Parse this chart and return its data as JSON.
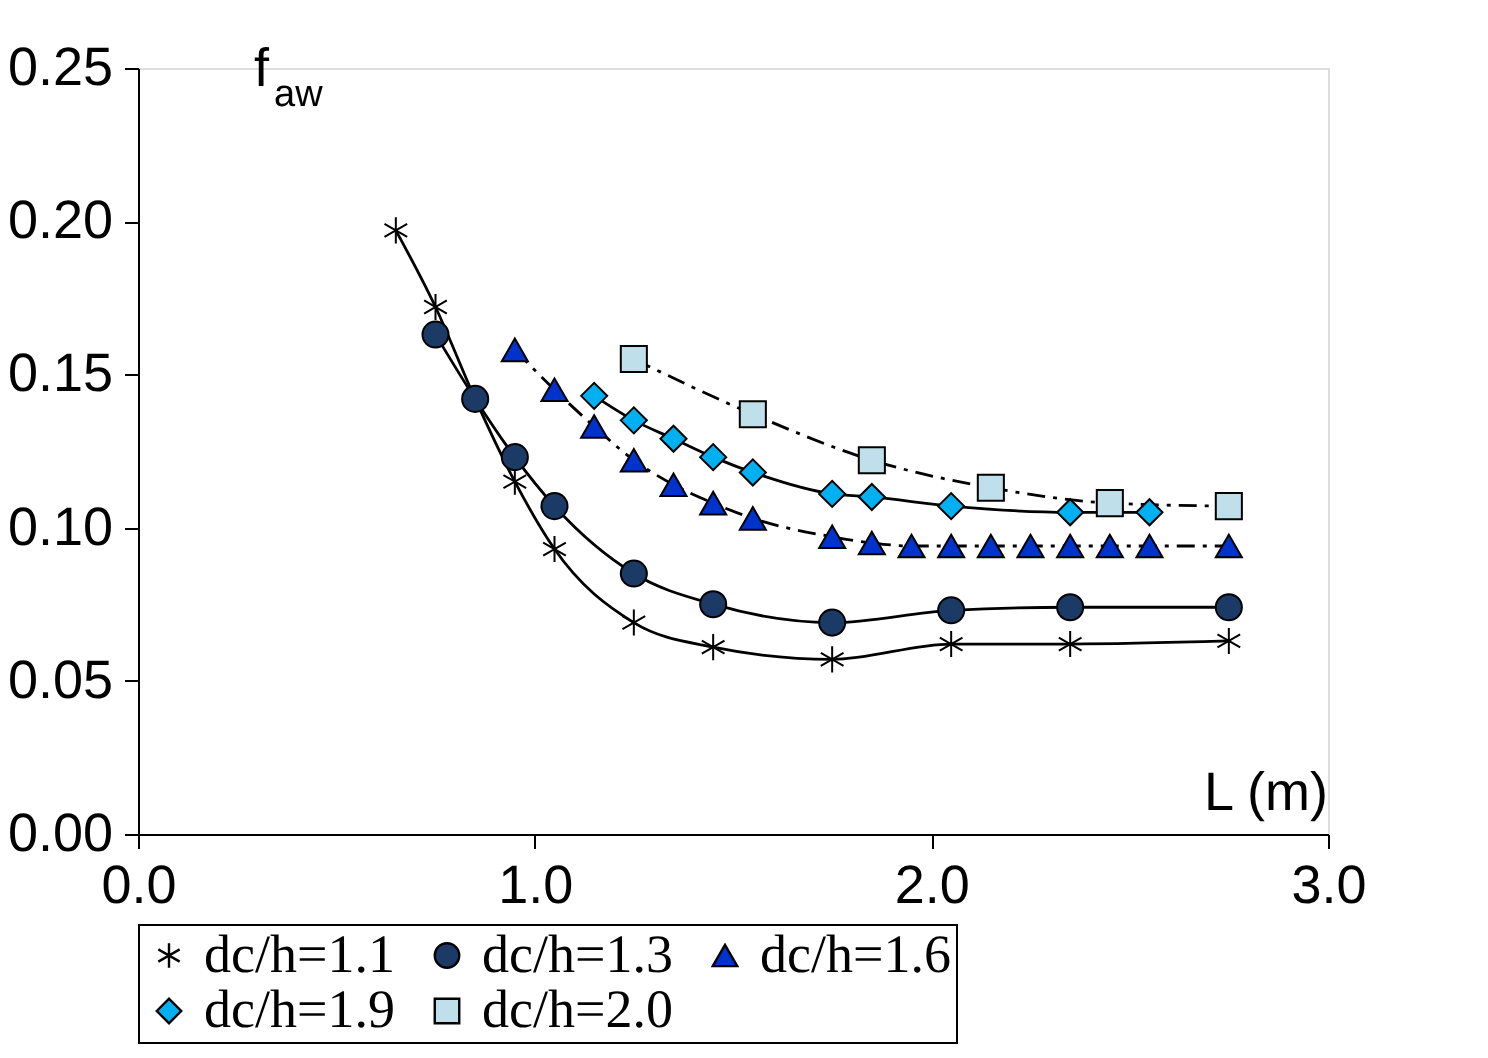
{
  "chart_data": {
    "type": "line",
    "xlabel": "L (m)",
    "ylabel": "f$_{aw}$",
    "xlim": [
      0,
      3
    ],
    "xticks": [
      {
        "value": 0,
        "label": "0.0"
      },
      {
        "value": 1,
        "label": "1.0"
      },
      {
        "value": 2,
        "label": "2.0"
      },
      {
        "value": 3,
        "label": "3.0"
      }
    ],
    "ylim": [
      0,
      0.25
    ],
    "yticks": [
      {
        "value": 0,
        "label": "0.00"
      },
      {
        "value": 0.05,
        "label": "0.05"
      },
      {
        "value": 0.1,
        "label": "0.10"
      },
      {
        "value": 0.15,
        "label": "0.15"
      },
      {
        "value": 0.2,
        "label": "0.20"
      },
      {
        "value": 0.25,
        "label": "0.25"
      }
    ],
    "grid": false,
    "legend": "bottom",
    "series": [
      {
        "name": "dc/h=1.1",
        "color": "#000000",
        "marker": "cross",
        "line_style": "solid",
        "x": [
          0.65,
          0.75,
          0.85,
          0.95,
          1.05,
          1.25,
          1.45,
          1.75,
          2.05,
          2.35,
          2.75
        ],
        "values": [
          0.197,
          0.172,
          0.142,
          0.115,
          0.093,
          0.069,
          0.061,
          0.057,
          0.062,
          0.062,
          0.063
        ]
      },
      {
        "name": "dc/h=1.3",
        "color": "#1b3a66",
        "marker": "circle",
        "line_style": "solid",
        "x": [
          0.75,
          0.85,
          0.95,
          1.05,
          1.25,
          1.45,
          1.75,
          2.05,
          2.35,
          2.75
        ],
        "values": [
          0.163,
          0.142,
          0.123,
          0.107,
          0.085,
          0.075,
          0.069,
          0.073,
          0.074,
          0.074
        ]
      },
      {
        "name": "dc/h=1.6",
        "color": "#0033cc",
        "marker": "triangle",
        "line_style": "dashed",
        "x": [
          0.95,
          1.05,
          1.15,
          1.25,
          1.35,
          1.45,
          1.55,
          1.75,
          1.85,
          1.95,
          2.05,
          2.15,
          2.25,
          2.35,
          2.45,
          2.55,
          2.75
        ],
        "values": [
          0.158,
          0.145,
          0.133,
          0.122,
          0.114,
          0.108,
          0.103,
          0.097,
          0.095,
          0.094,
          0.094,
          0.094,
          0.094,
          0.094,
          0.094,
          0.094,
          0.094
        ]
      },
      {
        "name": "dc/h=1.9",
        "color": "#00b0f0",
        "marker": "diamond",
        "line_style": "solid",
        "x": [
          1.15,
          1.25,
          1.35,
          1.45,
          1.55,
          1.75,
          1.85,
          2.05,
          2.35,
          2.55
        ],
        "values": [
          0.143,
          0.135,
          0.129,
          0.123,
          0.118,
          0.111,
          0.11,
          0.107,
          0.105,
          0.105
        ]
      },
      {
        "name": "dc/h=2.0",
        "color": "#bfe0ea",
        "marker": "square",
        "line_style": "dashed",
        "x": [
          1.25,
          1.55,
          1.85,
          2.15,
          2.45,
          2.75
        ],
        "values": [
          0.155,
          0.137,
          0.122,
          0.113,
          0.108,
          0.107
        ]
      }
    ]
  }
}
